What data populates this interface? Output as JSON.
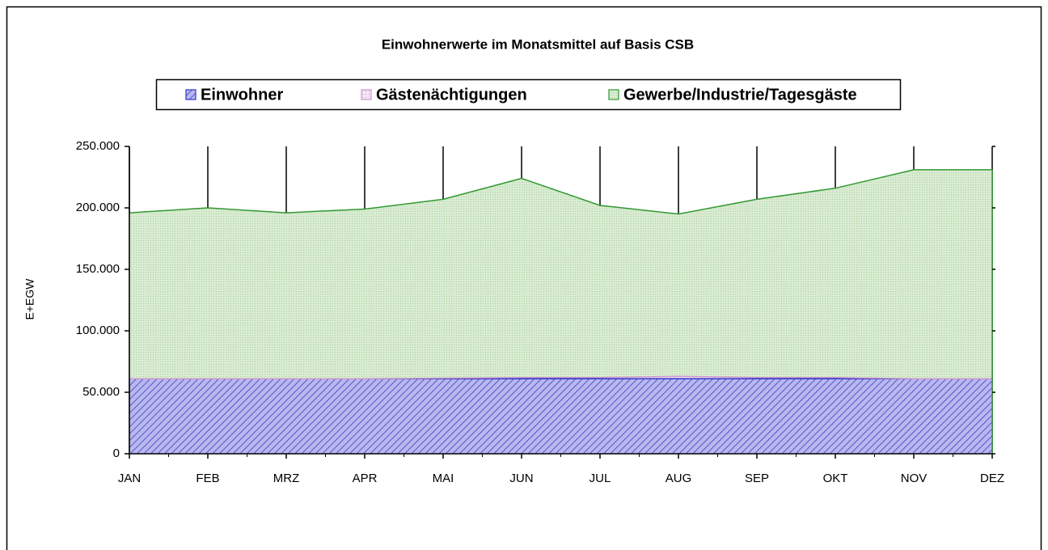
{
  "chart_data": {
    "type": "stacked_area",
    "title": "Einwohnerwerte im Monatsmittel auf Basis CSB",
    "y_label": "E+EGW",
    "categories": [
      "JAN",
      "FEB",
      "MRZ",
      "APR",
      "MAI",
      "JUN",
      "JUL",
      "AUG",
      "SEP",
      "OKT",
      "NOV",
      "DEZ"
    ],
    "series": [
      {
        "name": "Einwohner",
        "color": "#3333cc",
        "values": [
          61000,
          61000,
          61000,
          61000,
          61000,
          61000,
          61000,
          61000,
          61000,
          61000,
          61000,
          61000
        ]
      },
      {
        "name": "Gästenächtigungen",
        "color": "#cc99cc",
        "values": [
          0,
          0,
          0,
          0,
          500,
          1000,
          1000,
          2000,
          1000,
          1000,
          0,
          0
        ]
      },
      {
        "name": "Gewerbe/Industrie/Tagesgäste",
        "color": "#339933",
        "values": [
          135000,
          139000,
          135000,
          138000,
          145500,
          162000,
          140000,
          132000,
          145000,
          154000,
          170000,
          170000
        ]
      }
    ],
    "ylim": [
      0,
      250000
    ],
    "yticks": [
      0,
      {
        "value": 50000,
        "label": "50.000"
      },
      {
        "value": 100000,
        "label": "100.000"
      },
      {
        "value": 150000,
        "label": "150.000"
      },
      {
        "value": 200000,
        "label": "200.000"
      },
      {
        "value": 250000,
        "label": "250.000"
      }
    ],
    "grid": "x",
    "legend": "top"
  }
}
